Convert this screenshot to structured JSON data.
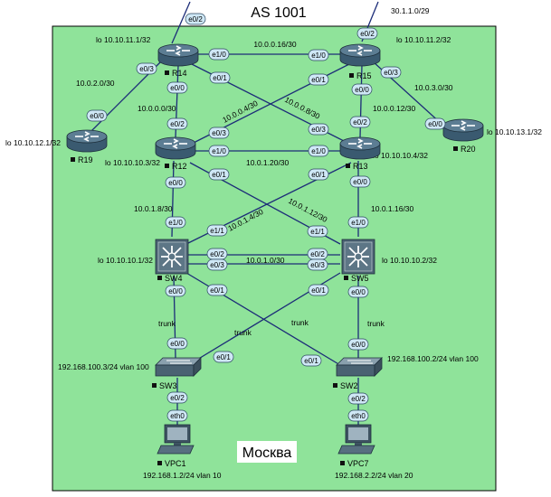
{
  "title": "AS 1001",
  "region_label": "Москва",
  "colors": {
    "area_fill": "#8fe39a",
    "link": "#1c2c78",
    "router_body": "#3a5a70",
    "switch_body": "#4a6272",
    "port_fill": "#cfe8f6"
  },
  "nodes": {
    "R14": {
      "name": "R14",
      "lo": "lo 10.10.11.1/32",
      "icon": "router-icon"
    },
    "R15": {
      "name": "R15",
      "lo": "lo 10.10.11.2/32",
      "icon": "router-icon"
    },
    "R19": {
      "name": "R19",
      "lo": "lo 10.10.12.1/32",
      "icon": "router-icon"
    },
    "R20": {
      "name": "R20",
      "lo": "lo 10.10.13.1/32",
      "icon": "router-icon"
    },
    "R12": {
      "name": "R12",
      "lo": "lo 10.10.10.3/32",
      "icon": "router-icon"
    },
    "R13": {
      "name": "R13",
      "lo": "lo 10.10.10.4/32",
      "icon": "router-icon"
    },
    "SW4": {
      "name": "SW4",
      "lo": "lo 10.10.10.1/32",
      "icon": "l3-switch-icon"
    },
    "SW5": {
      "name": "SW5",
      "lo": "lo 10.10.10.2/32",
      "icon": "l3-switch-icon"
    },
    "SW3": {
      "name": "SW3",
      "lo": "192.168.100.3/24 vlan 100",
      "icon": "switch-icon"
    },
    "SW2": {
      "name": "SW2",
      "lo": "192.168.100.2/24 vlan 100",
      "icon": "switch-icon"
    },
    "VPC1": {
      "name": "VPC1",
      "lo": "192.168.1.2/24 vlan 10",
      "icon": "pc-icon"
    },
    "VPC7": {
      "name": "VPC7",
      "lo": "192.168.2.2/24 vlan 20",
      "icon": "pc-icon"
    }
  },
  "subnets": {
    "r14_r15": "10.0.0.16/30",
    "r14_r19": "10.0.2.0/30",
    "r14_r12": "10.0.0.0/30",
    "r14_r13": "10.0.0.4/30",
    "r15_r12": "10.0.0.8/30",
    "r15_r13": "10.0.0.12/30",
    "r15_r20": "10.0.3.0/30",
    "r12_r13": "10.0.1.20/30",
    "r12_sw4": "10.0.1.8/30",
    "r12_sw5": "10.0.1.12/30",
    "r13_sw4": "10.0.1.4/30",
    "r13_sw5": "10.0.1.16/30",
    "sw4_sw5": "10.0.1.0/30",
    "uplink_r15": "30.1.1.0/29"
  },
  "trunk": "trunk",
  "ports": {
    "r14_top": "e0/2",
    "r14_e10": "e1/0",
    "r14_e01": "e0/1",
    "r14_e03": "e0/3",
    "r14_e00": "e0/0",
    "r15_top": "e0/2",
    "r15_e10": "e1/0",
    "r15_e01": "e0/1",
    "r15_e03": "e0/3",
    "r15_e00": "e0/0",
    "r19_e00": "e0/0",
    "r20_e00": "e0/0",
    "r12_e02": "e0/2",
    "r12_e03": "e0/3",
    "r12_e10": "e1/0",
    "r12_e01": "e0/1",
    "r12_e00": "e0/0",
    "r13_e02": "e0/2",
    "r13_e03": "e0/3",
    "r13_e10": "e1/0",
    "r13_e01": "e0/1",
    "r13_e00": "e0/0",
    "sw4_e10": "e1/0",
    "sw4_e11": "e1/1",
    "sw4_e02": "e0/2",
    "sw4_e03": "e0/3",
    "sw4_e00": "e0/0",
    "sw4_e01": "e0/1",
    "sw5_e10": "e1/0",
    "sw5_e11": "e1/1",
    "sw5_e02": "e0/2",
    "sw5_e03": "e0/3",
    "sw5_e00": "e0/0",
    "sw5_e01": "e0/1",
    "sw3_e00": "e0/0",
    "sw3_e01": "e0/1",
    "sw3_e02": "e0/2",
    "sw2_e00": "e0/0",
    "sw2_e01": "e0/1",
    "sw2_e02": "e0/2",
    "vpc1_eth0": "eth0",
    "vpc7_eth0": "eth0"
  }
}
